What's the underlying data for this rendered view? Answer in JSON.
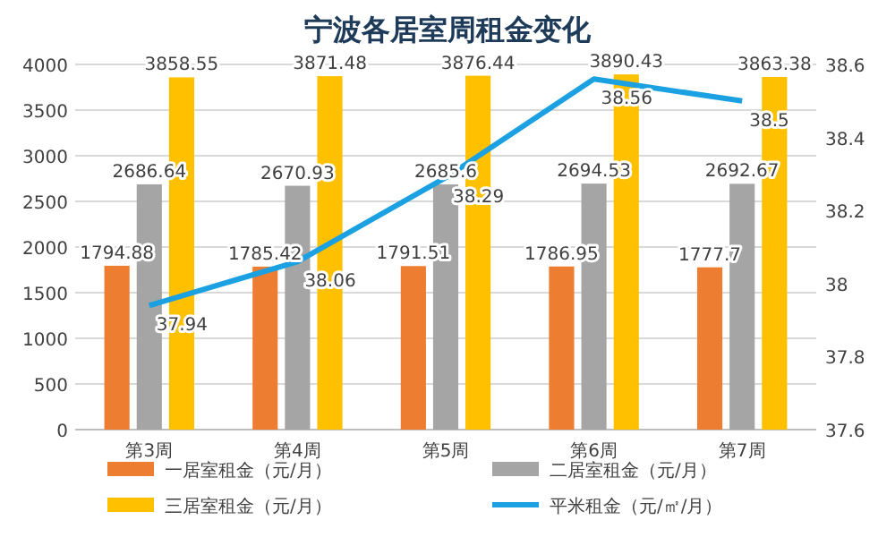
{
  "chart_data": {
    "type": "bar",
    "title": "宁波各居室周租金变化",
    "categories": [
      "第3周",
      "第4周",
      "第5周",
      "第6周",
      "第7周"
    ],
    "series": [
      {
        "name": "一居室租金（元/月）",
        "color": "#ed7d31",
        "values": [
          1794.88,
          1785.42,
          1791.51,
          1786.95,
          1777.7
        ]
      },
      {
        "name": "二居室租金（元/月）",
        "color": "#a5a5a5",
        "values": [
          2686.64,
          2670.93,
          2685.6,
          2694.53,
          2692.67
        ]
      },
      {
        "name": "三居室租金（元/月）",
        "color": "#ffc000",
        "values": [
          3858.55,
          3871.48,
          3876.44,
          3890.43,
          3863.38
        ]
      },
      {
        "name": "平米租金（元/㎡/月）",
        "color": "#1ba1e2",
        "type": "line",
        "axis": "y2",
        "values": [
          37.94,
          38.06,
          38.29,
          38.56,
          38.5
        ]
      }
    ],
    "ylim": [
      0,
      4000
    ],
    "yticks": [
      0,
      500,
      1000,
      1500,
      2000,
      2500,
      3000,
      3500,
      4000
    ],
    "y2lim": [
      37.6,
      38.6
    ],
    "y2ticks": [
      37.6,
      37.8,
      38,
      38.2,
      38.4,
      38.6
    ],
    "grid": "y",
    "legend": "bottom",
    "data_labels": true
  }
}
